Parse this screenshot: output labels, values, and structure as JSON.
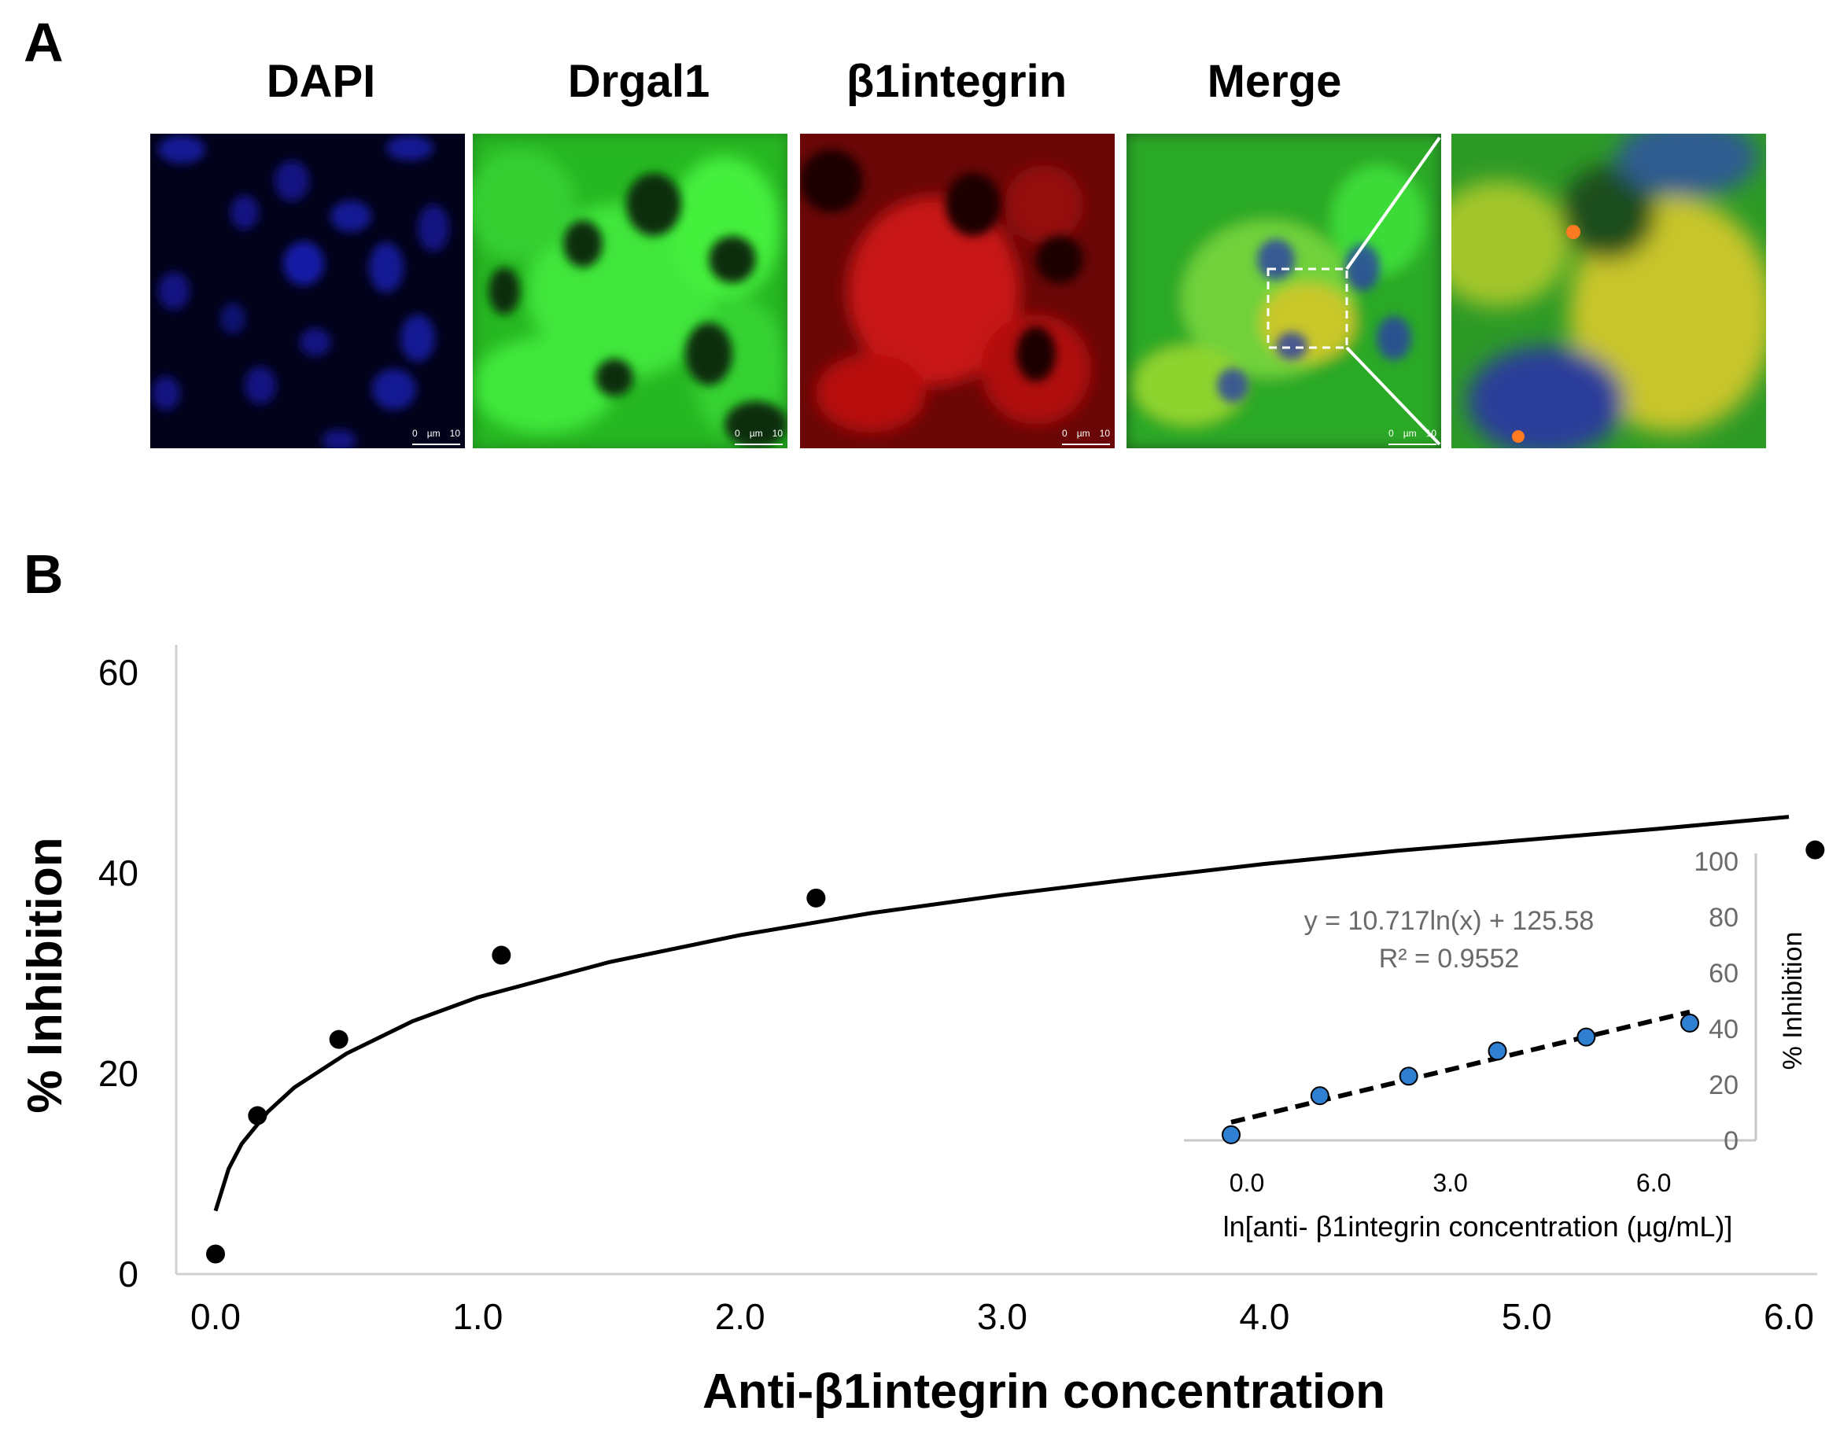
{
  "panels": {
    "a": "A",
    "b": "B"
  },
  "micrographs": [
    {
      "title": "DAPI",
      "scale": {
        "start": "0",
        "unit": "µm",
        "end": "10"
      }
    },
    {
      "title": "Drgal1",
      "scale": {
        "start": "0",
        "unit": "µm",
        "end": "10"
      }
    },
    {
      "title": "β1integrin",
      "scale": {
        "start": "0",
        "unit": "µm",
        "end": "10"
      }
    },
    {
      "title": "Merge",
      "scale": {
        "start": "0",
        "unit": "µm",
        "end": "10"
      }
    },
    {
      "title": "",
      "scale": null
    }
  ],
  "colors": {
    "dapi": "#1b22c8",
    "drgal1": "#2fd62a",
    "integrin": "#d81414",
    "merge_yellow": "#d8d61c",
    "inset_point": "#2f7fd3"
  },
  "chart_data": [
    {
      "type": "scatter",
      "xlabel": "Anti-β1integrin concentration",
      "ylabel": "% Inhibition",
      "xlim": [
        0.0,
        6.0
      ],
      "ylim": [
        0,
        60
      ],
      "x_ticks": [
        "0.0",
        "1.0",
        "2.0",
        "3.0",
        "4.0",
        "5.0",
        "6.0"
      ],
      "y_ticks": [
        "0",
        "20",
        "40",
        "60"
      ],
      "grid": false,
      "points": {
        "x": [
          0.0,
          0.16,
          0.47,
          1.09,
          2.29,
          6.1
        ],
        "y": [
          2.0,
          15.8,
          23.4,
          31.8,
          37.5,
          42.3
        ]
      },
      "fit": {
        "style": "solid",
        "x": [
          0.0,
          0.05,
          0.1,
          0.2,
          0.3,
          0.5,
          0.75,
          1.0,
          1.5,
          2.0,
          2.5,
          3.0,
          3.5,
          4.0,
          4.5,
          5.0,
          5.5,
          6.0
        ],
        "y": [
          6.3,
          10.5,
          13.0,
          16.2,
          18.6,
          22.0,
          25.2,
          27.6,
          31.1,
          33.8,
          36.0,
          37.8,
          39.4,
          40.9,
          42.2,
          43.3,
          44.4,
          45.6
        ]
      }
    },
    {
      "type": "scatter",
      "xlabel": "ln[anti- β1integrin concentration (µg/mL)]",
      "ylabel": "% Inhibition",
      "xlim": [
        -0.5,
        7.5
      ],
      "ylim": [
        0,
        100
      ],
      "x_ticks": [
        "0.0",
        "3.0",
        "6.0"
      ],
      "y_ticks": [
        "100",
        "80",
        "60",
        "40",
        "20",
        "0"
      ],
      "points": {
        "x": [
          -0.2,
          1.0,
          2.2,
          3.4,
          4.6,
          6.0
        ],
        "y": [
          2,
          16,
          23,
          32,
          37,
          42
        ]
      },
      "trendline": {
        "style": "dashed",
        "x": [
          -0.2,
          6.0
        ],
        "y": [
          6.5,
          46
        ]
      },
      "equation": "y = 10.717ln(x) + 125.58",
      "r_squared": "R² = 0.9552"
    }
  ]
}
